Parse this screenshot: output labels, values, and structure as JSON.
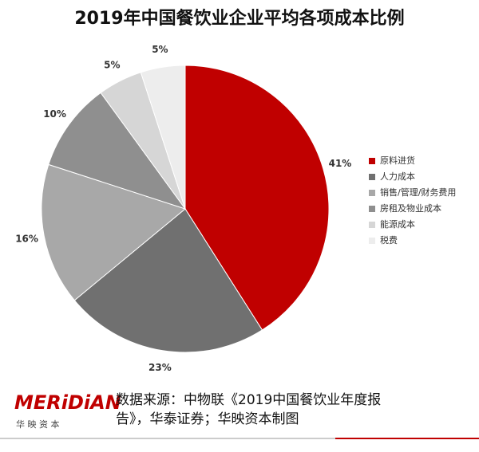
{
  "chart_data": {
    "type": "pie",
    "title": "2019年中国餐饮业企业平均各项成本比例",
    "categories": [
      "原料进货",
      "人力成本",
      "销售/管理/财务费用",
      "房租及物业成本",
      "能源成本",
      "税费"
    ],
    "values": [
      41,
      23,
      16,
      10,
      5,
      5
    ],
    "value_labels": [
      "41%",
      "23%",
      "16%",
      "10%",
      "5%",
      "5%"
    ],
    "colors": [
      "#c00000",
      "#707070",
      "#a8a8a8",
      "#8f8f8f",
      "#d6d6d6",
      "#ededed"
    ],
    "legend": "right"
  },
  "source_lines": [
    "数据来源：中物联《2019中国餐饮业年度报",
    "告》，华泰证券；华映资本制图"
  ],
  "branding": {
    "logo": "MERiDiAN",
    "subtitle": "华 映 资 本"
  }
}
